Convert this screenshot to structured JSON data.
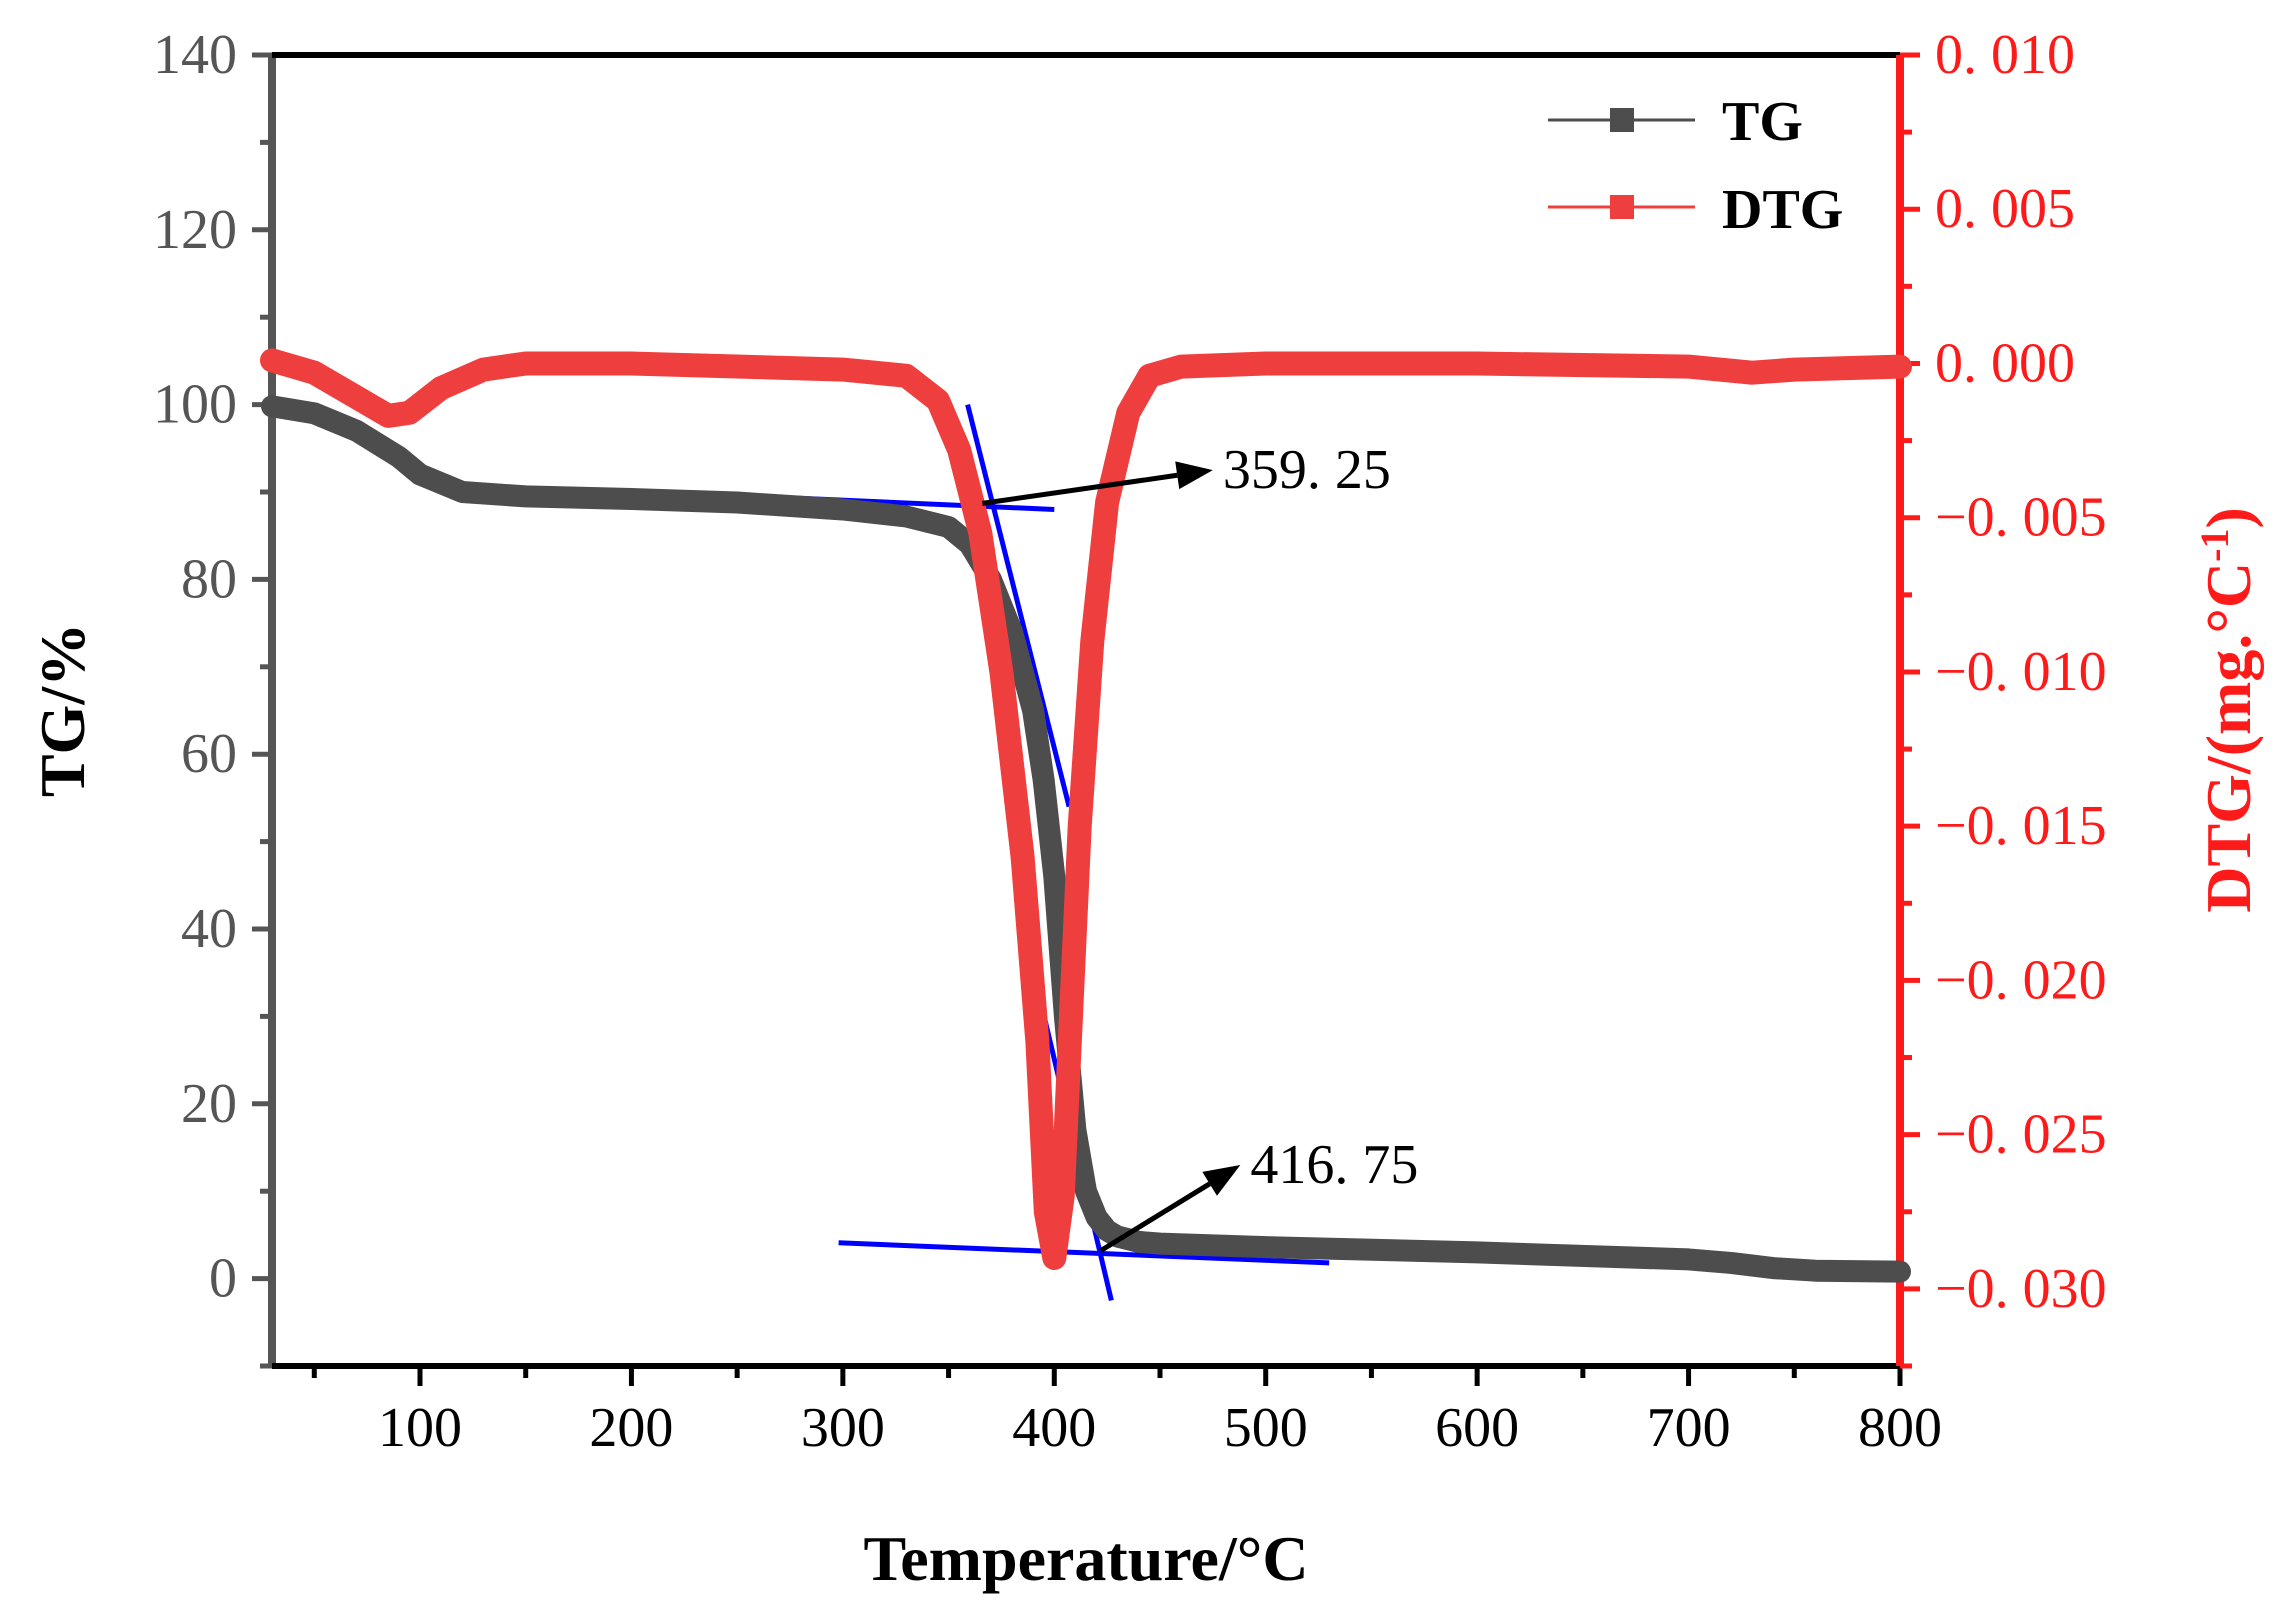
{
  "chart_data": {
    "type": "line",
    "xlabel": "Temperature/°C",
    "ylabel_left": "TG/%",
    "ylabel_right_main": "DTG/(mg.°C",
    "ylabel_right_sup": "-1",
    "ylabel_right_close": ")",
    "xlim": [
      30,
      800
    ],
    "ylim_left": [
      -10,
      140
    ],
    "ylim_right": [
      -0.0325,
      0.01
    ],
    "x_ticks": [
      100,
      200,
      300,
      400,
      500,
      600,
      700,
      800
    ],
    "x_tick_labels": [
      "100",
      "200",
      "300",
      "400",
      "500",
      "600",
      "700",
      "800"
    ],
    "y_left_ticks": [
      0,
      20,
      40,
      60,
      80,
      100,
      120,
      140
    ],
    "y_left_tick_labels": [
      "0",
      "20",
      "40",
      "60",
      "80",
      "100",
      "120",
      "140"
    ],
    "y_right_ticks": [
      0.01,
      0.005,
      0.0,
      -0.005,
      -0.01,
      -0.015,
      -0.02,
      -0.025,
      -0.03
    ],
    "y_right_tick_labels": [
      "0. 010",
      "0. 005",
      "0. 000",
      "−0. 005",
      "−0. 010",
      "−0. 015",
      "−0. 020",
      "−0. 025",
      "−0. 030"
    ],
    "legend": {
      "placement": "top-right",
      "entries": [
        "TG",
        "DTG"
      ]
    },
    "series": [
      {
        "name": "TG",
        "axis": "left",
        "color": "#4d4d4d",
        "x": [
          30,
          50,
          70,
          90,
          100,
          120,
          150,
          200,
          250,
          300,
          330,
          350,
          360,
          370,
          380,
          390,
          395,
          400,
          405,
          410,
          415,
          420,
          425,
          430,
          440,
          450,
          500,
          600,
          700,
          720,
          740,
          760,
          800
        ],
        "y": [
          99.8,
          99,
          97,
          94,
          92,
          90,
          89.5,
          89.2,
          88.8,
          88,
          87.2,
          86,
          84,
          80,
          74,
          65,
          57,
          46,
          30,
          17,
          10,
          7,
          5.5,
          4.8,
          4.2,
          4,
          3.6,
          3,
          2.2,
          1.8,
          1.2,
          0.9,
          0.8
        ]
      },
      {
        "name": "DTG",
        "axis": "right",
        "color": "#ef3e3e",
        "x": [
          30,
          50,
          70,
          85,
          95,
          110,
          130,
          150,
          200,
          300,
          330,
          345,
          355,
          365,
          375,
          385,
          392,
          396,
          400,
          404,
          408,
          412,
          418,
          425,
          435,
          445,
          460,
          500,
          600,
          700,
          730,
          750,
          800
        ],
        "y": [
          0.0001,
          -0.0003,
          -0.0011,
          -0.0017,
          -0.0016,
          -0.0008,
          -0.0002,
          0.0,
          0.0,
          -0.0002,
          -0.0004,
          -0.0012,
          -0.0028,
          -0.0055,
          -0.01,
          -0.016,
          -0.022,
          -0.0275,
          -0.029,
          -0.027,
          -0.021,
          -0.015,
          -0.009,
          -0.0045,
          -0.0016,
          -0.0004,
          -0.0001,
          0.0,
          0.0,
          -0.0001,
          -0.0003,
          -0.0002,
          -0.0001
        ]
      }
    ],
    "tangent_lines": [
      {
        "left": [
          [
            250,
            89.6
          ],
          [
            400,
            88.0
          ]
        ]
      },
      {
        "left": [
          [
            359,
            100
          ],
          [
            407,
            54
          ]
        ]
      },
      {
        "left": [
          [
            382,
            43.5
          ],
          [
            427,
            -2.5
          ]
        ]
      },
      {
        "left": [
          [
            298,
            4.1
          ],
          [
            530,
            1.8
          ]
        ]
      }
    ],
    "annotations": [
      {
        "text": "359. 25",
        "from": [
          366,
          88.7
        ],
        "to": [
          475,
          92.5
        ]
      },
      {
        "text": "416. 75",
        "from": [
          422,
          3.2
        ],
        "to": [
          488,
          13
        ]
      }
    ]
  }
}
